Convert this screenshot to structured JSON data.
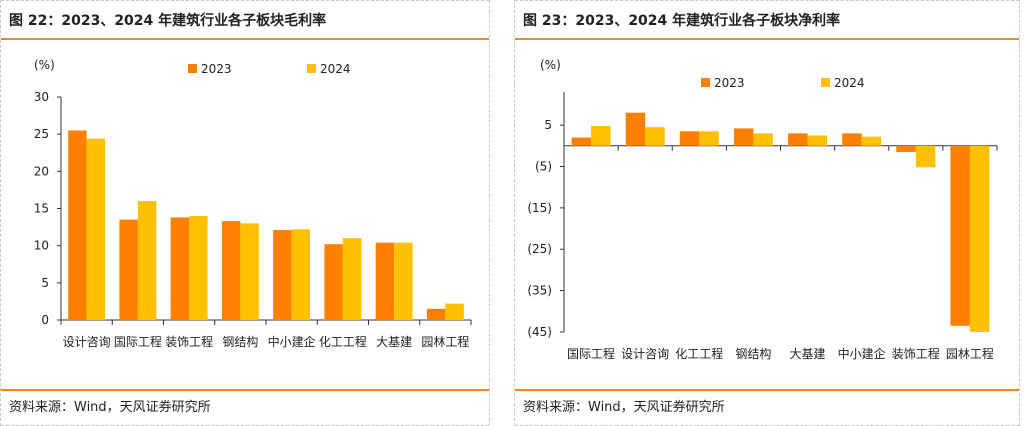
{
  "colors": {
    "accent": "#e8862a",
    "series_2023": "#ff8000",
    "series_2024": "#ffc000"
  },
  "left": {
    "title": "图 22：2023、2024 年建筑行业各子板块毛利率",
    "source": "资料来源：Wind，天风证券研究所"
  },
  "right": {
    "title": "图 23：2023、2024 年建筑行业各子板块净利率",
    "source": "资料来源：Wind，天风证券研究所"
  },
  "chart_data": [
    {
      "type": "bar",
      "unit_label": "(%)",
      "categories": [
        "设计咨询",
        "国际工程",
        "装饰工程",
        "钢结构",
        "中小建企",
        "化工工程",
        "大基建",
        "园林工程"
      ],
      "series": [
        {
          "name": "2023",
          "values": [
            25.5,
            13.5,
            13.8,
            13.3,
            12.1,
            10.2,
            10.4,
            1.5
          ]
        },
        {
          "name": "2024",
          "values": [
            24.4,
            16.0,
            14.0,
            13.0,
            12.2,
            11.0,
            10.4,
            2.2
          ]
        }
      ],
      "ylim": [
        0,
        30
      ],
      "yticks": [
        0,
        5,
        10,
        15,
        20,
        25,
        30
      ],
      "ytick_labels": [
        "0",
        "5",
        "10",
        "15",
        "20",
        "25",
        "30"
      ],
      "legend_position": "top",
      "grid": false
    },
    {
      "type": "bar",
      "unit_label": "(%)",
      "categories": [
        "国际工程",
        "设计咨询",
        "化工工程",
        "钢结构",
        "大基建",
        "中小建企",
        "装饰工程",
        "园林工程"
      ],
      "series": [
        {
          "name": "2023",
          "values": [
            2.0,
            8.0,
            3.5,
            4.2,
            3.0,
            3.0,
            -1.5,
            -43.5
          ]
        },
        {
          "name": "2024",
          "values": [
            4.8,
            4.5,
            3.5,
            3.0,
            2.5,
            2.2,
            -5.2,
            -45.0
          ]
        }
      ],
      "ylim": [
        -45,
        13
      ],
      "yticks": [
        5,
        -5,
        -15,
        -25,
        -35,
        -45
      ],
      "ytick_labels": [
        "5",
        "(5)",
        "(15)",
        "(25)",
        "(35)",
        "(45)"
      ],
      "legend_position": "top",
      "grid": false
    }
  ]
}
